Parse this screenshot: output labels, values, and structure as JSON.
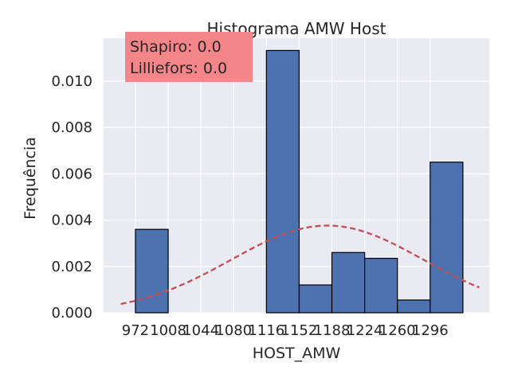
{
  "chart_data": {
    "type": "bar",
    "title": "Histograma AMW Host",
    "xlabel": "HOST_AMW",
    "ylabel": "Frequência",
    "x_tick_labels": [
      "972",
      "1008",
      "1044",
      "1080",
      "1116",
      "1152",
      "1188",
      "1224",
      "1260",
      "1296"
    ],
    "x_tick_values": [
      972,
      1008,
      1044,
      1080,
      1116,
      1152,
      1188,
      1224,
      1260,
      1296
    ],
    "y_tick_labels": [
      "0.000",
      "0.002",
      "0.004",
      "0.006",
      "0.008",
      "0.010"
    ],
    "y_tick_values": [
      0,
      0.002,
      0.004,
      0.006,
      0.008,
      0.01
    ],
    "xlim": [
      937,
      1361
    ],
    "ylim": [
      0,
      0.01185
    ],
    "bins": [
      {
        "start": 972,
        "end": 1008,
        "value": 0.0036
      },
      {
        "start": 1008,
        "end": 1044,
        "value": 0
      },
      {
        "start": 1044,
        "end": 1080,
        "value": 0
      },
      {
        "start": 1080,
        "end": 1116,
        "value": 0
      },
      {
        "start": 1116,
        "end": 1152,
        "value": 0.01132
      },
      {
        "start": 1152,
        "end": 1188,
        "value": 0.0012
      },
      {
        "start": 1188,
        "end": 1224,
        "value": 0.0026
      },
      {
        "start": 1224,
        "end": 1260,
        "value": 0.00235
      },
      {
        "start": 1260,
        "end": 1296,
        "value": 0.00055
      },
      {
        "start": 1296,
        "end": 1332,
        "value": 0.0065
      }
    ],
    "curve": {
      "type": "normal-pdf",
      "mean": 1183,
      "std": 106,
      "x_range": [
        956,
        1350
      ],
      "style": "dashed"
    },
    "annotation": {
      "lines": [
        "Shapiro: 0.0",
        "Lilliefors: 0.0"
      ],
      "position": "top-left"
    },
    "grid": true,
    "legend": "none"
  },
  "colors": {
    "background": "#eaeaf2",
    "bar_fill": "#4c72b0",
    "bar_edge": "#000000",
    "curve": "#c44e52",
    "annotation_box": "#f4868a",
    "grid": "#ffffff"
  }
}
